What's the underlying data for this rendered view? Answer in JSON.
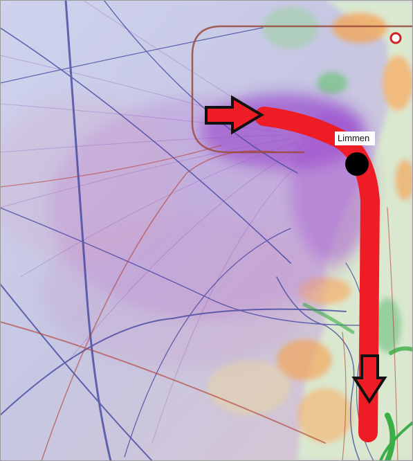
{
  "map": {
    "place_label": "Limmen",
    "colors": {
      "route": "#ee1c24",
      "arrow_outline": "#111111",
      "station": "#000000",
      "flight_tracks": "#8a2ac8",
      "blue_tracks": "#3a3f9a",
      "red_tracks": "#b23a2e",
      "green_tracks": "#2aa83a",
      "land_orange": "#f2a65a",
      "land_green": "#7cc48a",
      "background": "#c7cbe6"
    },
    "icons": [
      "arrow-right-icon",
      "arrow-down-icon",
      "station-marker",
      "ring-marker-icon"
    ]
  }
}
